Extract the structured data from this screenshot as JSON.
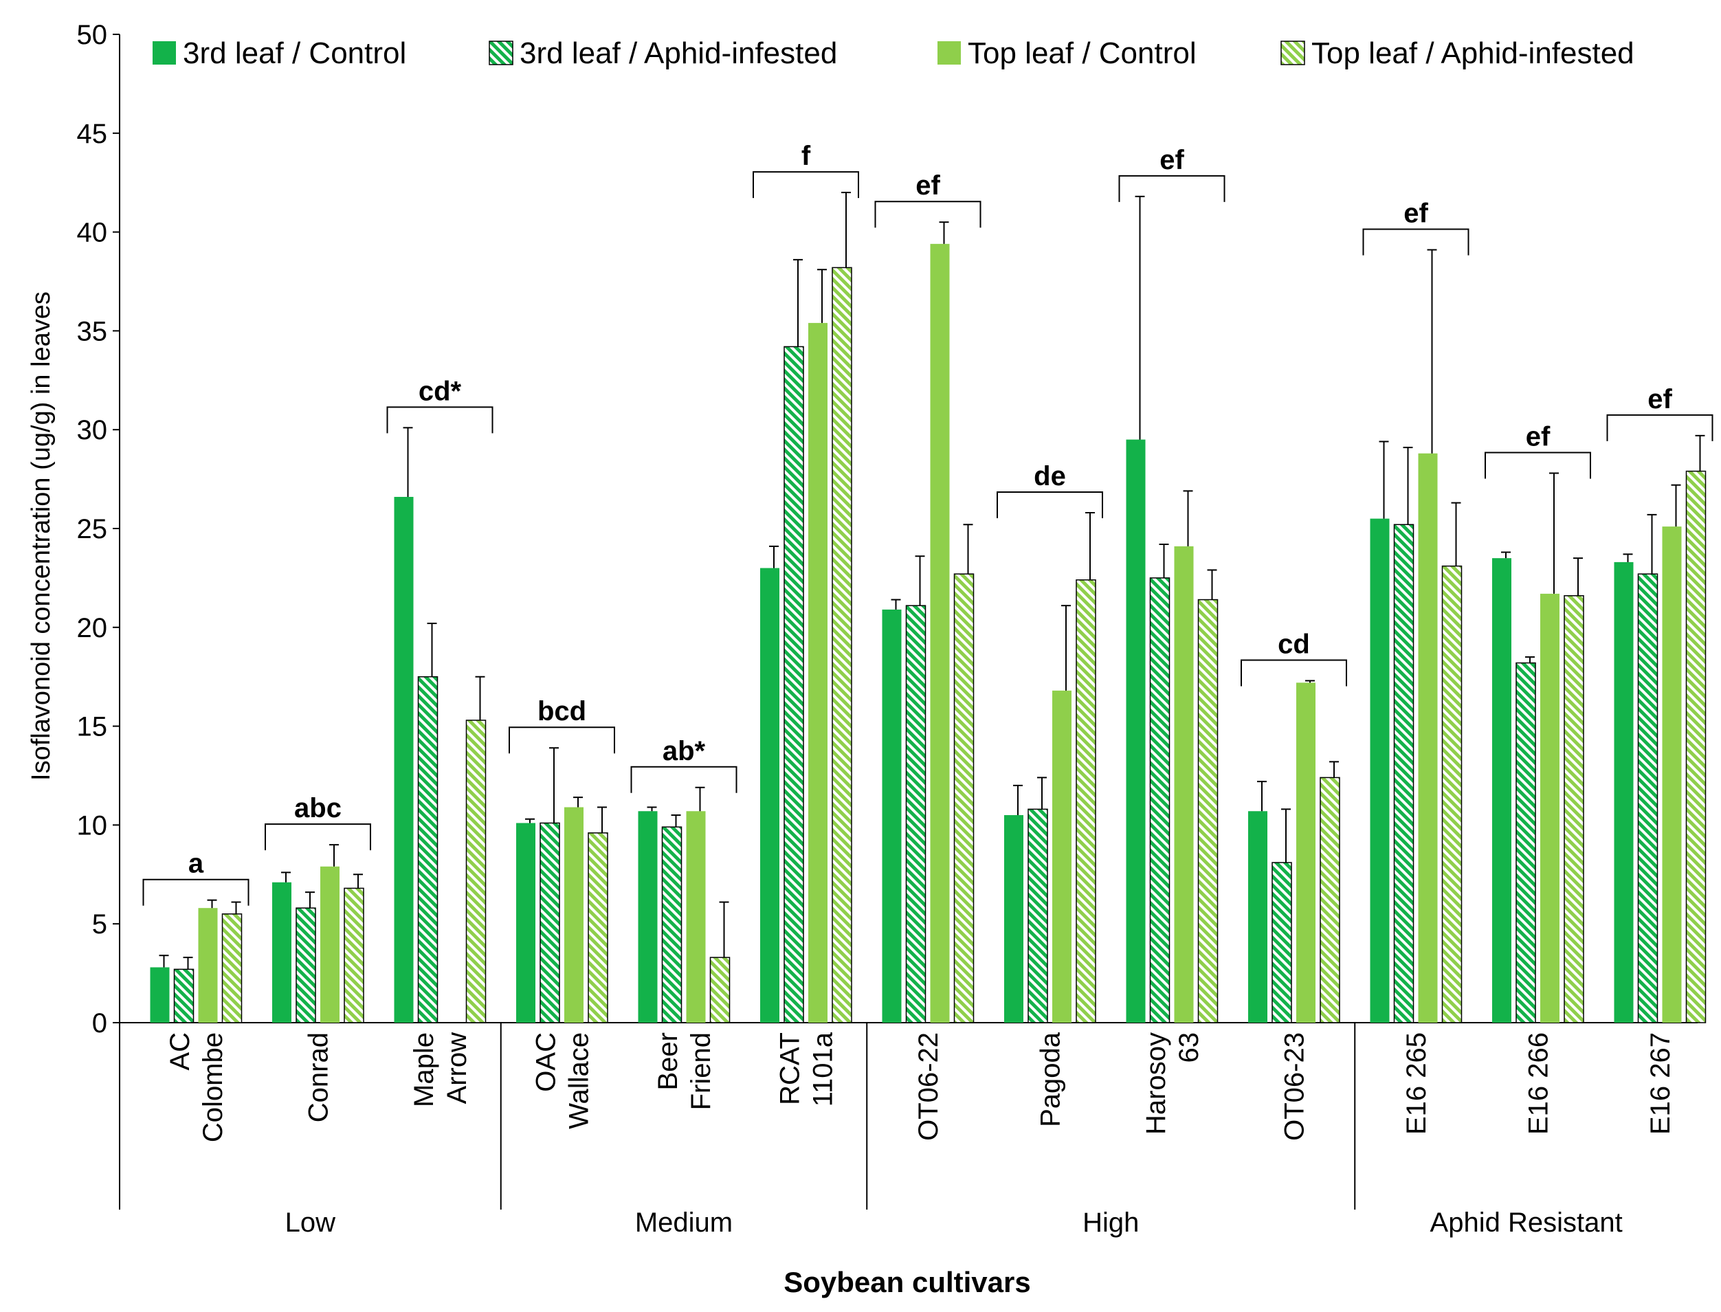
{
  "chart_data": {
    "type": "bar",
    "title": "",
    "xlabel": "Soybean cultivars",
    "ylabel": "Isoflavonoid concentration (ug/g) in leaves",
    "ylim": [
      0,
      50
    ],
    "yticks": [
      0,
      5,
      10,
      15,
      20,
      25,
      30,
      35,
      40,
      45,
      50
    ],
    "grid": false,
    "legend_position": "top",
    "categories": [
      [
        "AC",
        "Colombe"
      ],
      [
        "Conrad"
      ],
      [
        "Maple",
        "Arrow"
      ],
      [
        "OAC",
        "Wallace"
      ],
      [
        "Beer",
        "Friend"
      ],
      [
        "RCAT",
        "1101a"
      ],
      [
        "OT06-22"
      ],
      [
        "Pagoda"
      ],
      [
        "Harosoy",
        "63"
      ],
      [
        "OT06-23"
      ],
      [
        "E16 265"
      ],
      [
        "E16 266"
      ],
      [
        "E16 267"
      ]
    ],
    "groups": [
      {
        "label": "Low",
        "span": [
          0,
          2
        ]
      },
      {
        "label": "Medium",
        "span": [
          3,
          5
        ]
      },
      {
        "label": "High",
        "span": [
          6,
          9
        ]
      },
      {
        "label": "Aphid Resistant",
        "span": [
          10,
          12
        ]
      }
    ],
    "series": [
      {
        "name": "3rd leaf / Control",
        "color": "#13b24a",
        "hatched": false,
        "values": [
          2.8,
          7.1,
          26.6,
          10.1,
          10.7,
          23.0,
          20.9,
          10.5,
          29.5,
          10.7,
          25.5,
          23.5,
          23.3
        ],
        "errors": [
          0.6,
          0.5,
          3.5,
          0.2,
          0.2,
          1.1,
          0.5,
          1.5,
          12.3,
          1.5,
          3.9,
          0.3,
          0.4
        ]
      },
      {
        "name": "3rd leaf / Aphid-infested",
        "color": "#13b24a",
        "hatched": true,
        "values": [
          2.7,
          5.8,
          17.5,
          10.1,
          9.9,
          34.2,
          21.1,
          10.8,
          22.5,
          8.1,
          25.2,
          18.2,
          22.7
        ],
        "errors": [
          0.6,
          0.8,
          2.7,
          3.8,
          0.6,
          4.4,
          2.5,
          1.6,
          1.7,
          2.7,
          3.9,
          0.3,
          3.0
        ]
      },
      {
        "name": "Top leaf / Control",
        "color": "#8fcf4b",
        "hatched": false,
        "values": [
          5.8,
          7.9,
          0,
          10.9,
          10.7,
          35.4,
          39.4,
          16.8,
          24.1,
          17.2,
          28.8,
          21.7,
          25.1
        ],
        "errors": [
          0.4,
          1.1,
          0,
          0.5,
          1.2,
          2.7,
          1.1,
          4.3,
          2.8,
          0.1,
          10.3,
          6.1,
          2.1
        ]
      },
      {
        "name": "Top leaf / Aphid-infested",
        "color": "#8fcf4b",
        "hatched": true,
        "values": [
          5.5,
          6.8,
          15.3,
          9.6,
          3.3,
          38.2,
          22.7,
          22.4,
          21.4,
          12.4,
          23.1,
          21.6,
          27.9
        ],
        "errors": [
          0.6,
          0.7,
          2.2,
          1.3,
          2.8,
          3.8,
          2.5,
          3.4,
          1.5,
          0.8,
          3.2,
          1.9,
          1.8
        ]
      }
    ],
    "annotations": [
      "a",
      "abc",
      "cd*",
      "bcd",
      "ab*",
      "f",
      "ef",
      "de",
      "ef",
      "cd",
      "ef",
      "ef",
      "ef"
    ]
  }
}
